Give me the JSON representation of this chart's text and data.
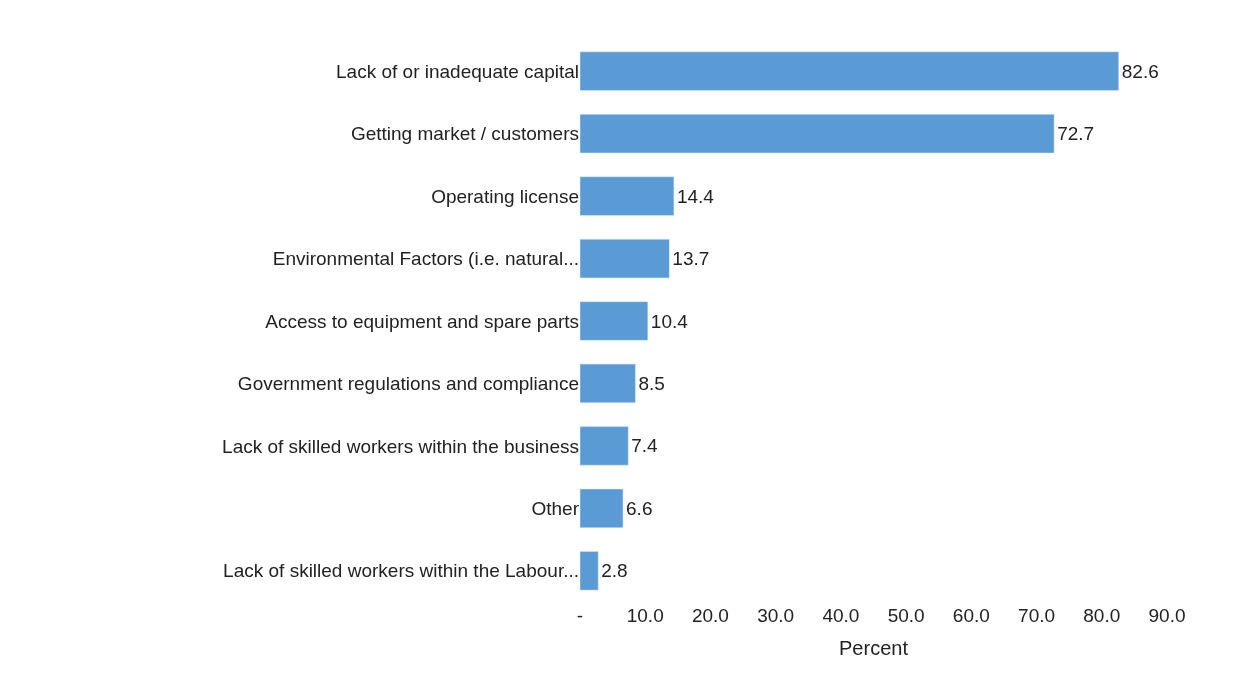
{
  "chart_data": {
    "type": "bar",
    "orientation": "horizontal",
    "xlabel": "Percent",
    "categories": [
      "Lack of or inadequate capital",
      "Getting market / customers",
      "Operating license",
      "Environmental Factors (i.e. natural...",
      "Access to equipment and spare parts",
      "Government regulations and compliance",
      "Lack of skilled workers within the business",
      "Other",
      "Lack of skilled workers within the Labour..."
    ],
    "values": [
      82.6,
      72.7,
      14.4,
      13.7,
      10.4,
      8.5,
      7.4,
      6.6,
      2.8
    ],
    "color": "#5b9bd5",
    "xlim": [
      0,
      90
    ],
    "xticks": [
      {
        "value": 0,
        "label": "-"
      },
      {
        "value": 10,
        "label": "10.0"
      },
      {
        "value": 20,
        "label": "20.0"
      },
      {
        "value": 30,
        "label": "30.0"
      },
      {
        "value": 40,
        "label": "40.0"
      },
      {
        "value": 50,
        "label": "50.0"
      },
      {
        "value": 60,
        "label": "60.0"
      },
      {
        "value": 70,
        "label": "70.0"
      },
      {
        "value": 80,
        "label": "80.0"
      },
      {
        "value": 90,
        "label": "90.0"
      }
    ],
    "data_labels": true
  }
}
